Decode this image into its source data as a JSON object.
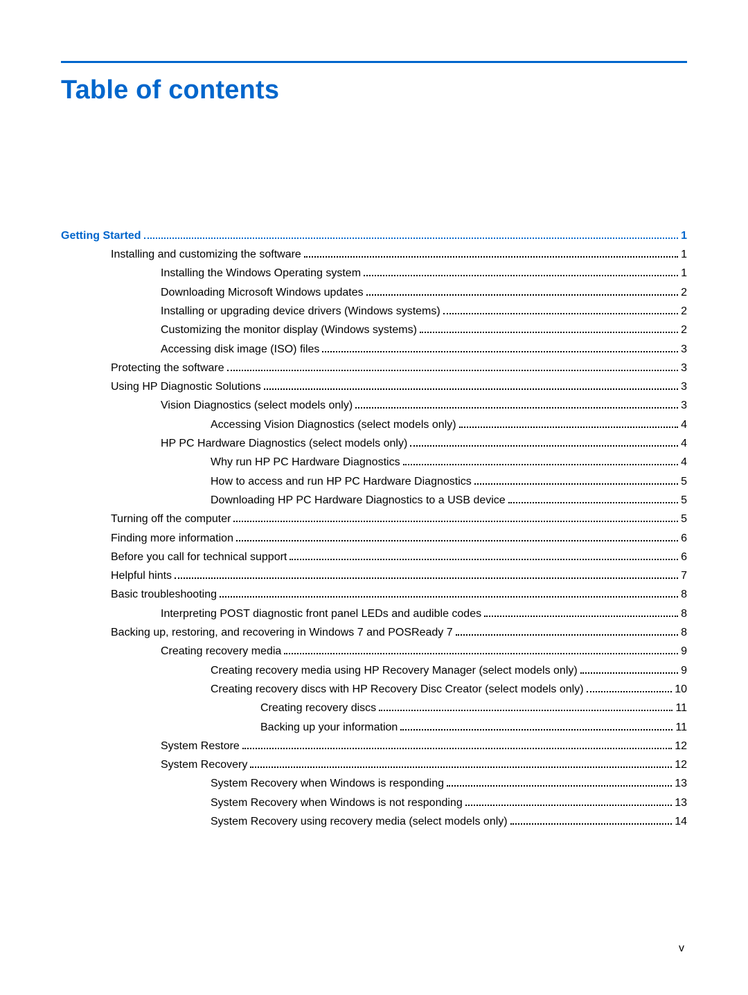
{
  "title": "Table of contents",
  "footer_page": "v",
  "colors": {
    "accent": "#0066cc",
    "text": "#000000",
    "background": "#ffffff"
  },
  "typography": {
    "title_pt": 28,
    "body_pt": 12,
    "body_family": "Arial"
  },
  "toc": [
    {
      "label": "Getting Started",
      "page": "1",
      "indent": 0,
      "is_chapter": true
    },
    {
      "label": "Installing and customizing the software",
      "page": "1",
      "indent": 1,
      "is_chapter": false
    },
    {
      "label": "Installing the Windows Operating system",
      "page": "1",
      "indent": 2,
      "is_chapter": false
    },
    {
      "label": "Downloading Microsoft Windows updates",
      "page": "2",
      "indent": 2,
      "is_chapter": false
    },
    {
      "label": "Installing or upgrading device drivers (Windows systems)",
      "page": "2",
      "indent": 2,
      "is_chapter": false
    },
    {
      "label": "Customizing the monitor display (Windows systems)",
      "page": "2",
      "indent": 2,
      "is_chapter": false
    },
    {
      "label": "Accessing disk image (ISO) files",
      "page": "3",
      "indent": 2,
      "is_chapter": false
    },
    {
      "label": "Protecting the software",
      "page": "3",
      "indent": 1,
      "is_chapter": false
    },
    {
      "label": "Using HP Diagnostic Solutions",
      "page": "3",
      "indent": 1,
      "is_chapter": false
    },
    {
      "label": "Vision Diagnostics (select models only)",
      "page": "3",
      "indent": 2,
      "is_chapter": false
    },
    {
      "label": "Accessing Vision Diagnostics (select models only)",
      "page": "4",
      "indent": 3,
      "is_chapter": false
    },
    {
      "label": "HP PC Hardware Diagnostics (select models only)",
      "page": "4",
      "indent": 2,
      "is_chapter": false
    },
    {
      "label": "Why run HP PC Hardware Diagnostics",
      "page": "4",
      "indent": 3,
      "is_chapter": false
    },
    {
      "label": "How to access and run HP PC Hardware Diagnostics",
      "page": "5",
      "indent": 3,
      "is_chapter": false
    },
    {
      "label": "Downloading HP PC Hardware Diagnostics to a USB device",
      "page": "5",
      "indent": 3,
      "is_chapter": false
    },
    {
      "label": "Turning off the computer",
      "page": "5",
      "indent": 1,
      "is_chapter": false
    },
    {
      "label": "Finding more information",
      "page": "6",
      "indent": 1,
      "is_chapter": false
    },
    {
      "label": "Before you call for technical support",
      "page": "6",
      "indent": 1,
      "is_chapter": false
    },
    {
      "label": "Helpful hints",
      "page": "7",
      "indent": 1,
      "is_chapter": false
    },
    {
      "label": "Basic troubleshooting",
      "page": "8",
      "indent": 1,
      "is_chapter": false
    },
    {
      "label": "Interpreting POST diagnostic front panel LEDs and audible codes",
      "page": "8",
      "indent": 2,
      "is_chapter": false
    },
    {
      "label": "Backing up, restoring, and recovering in Windows 7 and POSReady 7",
      "page": "8",
      "indent": 1,
      "is_chapter": false
    },
    {
      "label": "Creating recovery media",
      "page": "9",
      "indent": 2,
      "is_chapter": false
    },
    {
      "label": "Creating recovery media using HP Recovery Manager (select models only)",
      "page": "9",
      "indent": 3,
      "is_chapter": false
    },
    {
      "label": "Creating recovery discs with HP Recovery Disc Creator (select models only)",
      "page": "10",
      "indent": 3,
      "is_chapter": false
    },
    {
      "label": "Creating recovery discs",
      "page": "11",
      "indent": 4,
      "is_chapter": false
    },
    {
      "label": "Backing up your information",
      "page": "11",
      "indent": 4,
      "is_chapter": false
    },
    {
      "label": "System Restore",
      "page": "12",
      "indent": 2,
      "is_chapter": false
    },
    {
      "label": "System Recovery",
      "page": "12",
      "indent": 2,
      "is_chapter": false
    },
    {
      "label": "System Recovery when Windows is responding",
      "page": "13",
      "indent": 3,
      "is_chapter": false
    },
    {
      "label": "System Recovery when Windows is not responding",
      "page": "13",
      "indent": 3,
      "is_chapter": false
    },
    {
      "label": "System Recovery using recovery media (select models only)",
      "page": "14",
      "indent": 3,
      "is_chapter": false
    }
  ]
}
